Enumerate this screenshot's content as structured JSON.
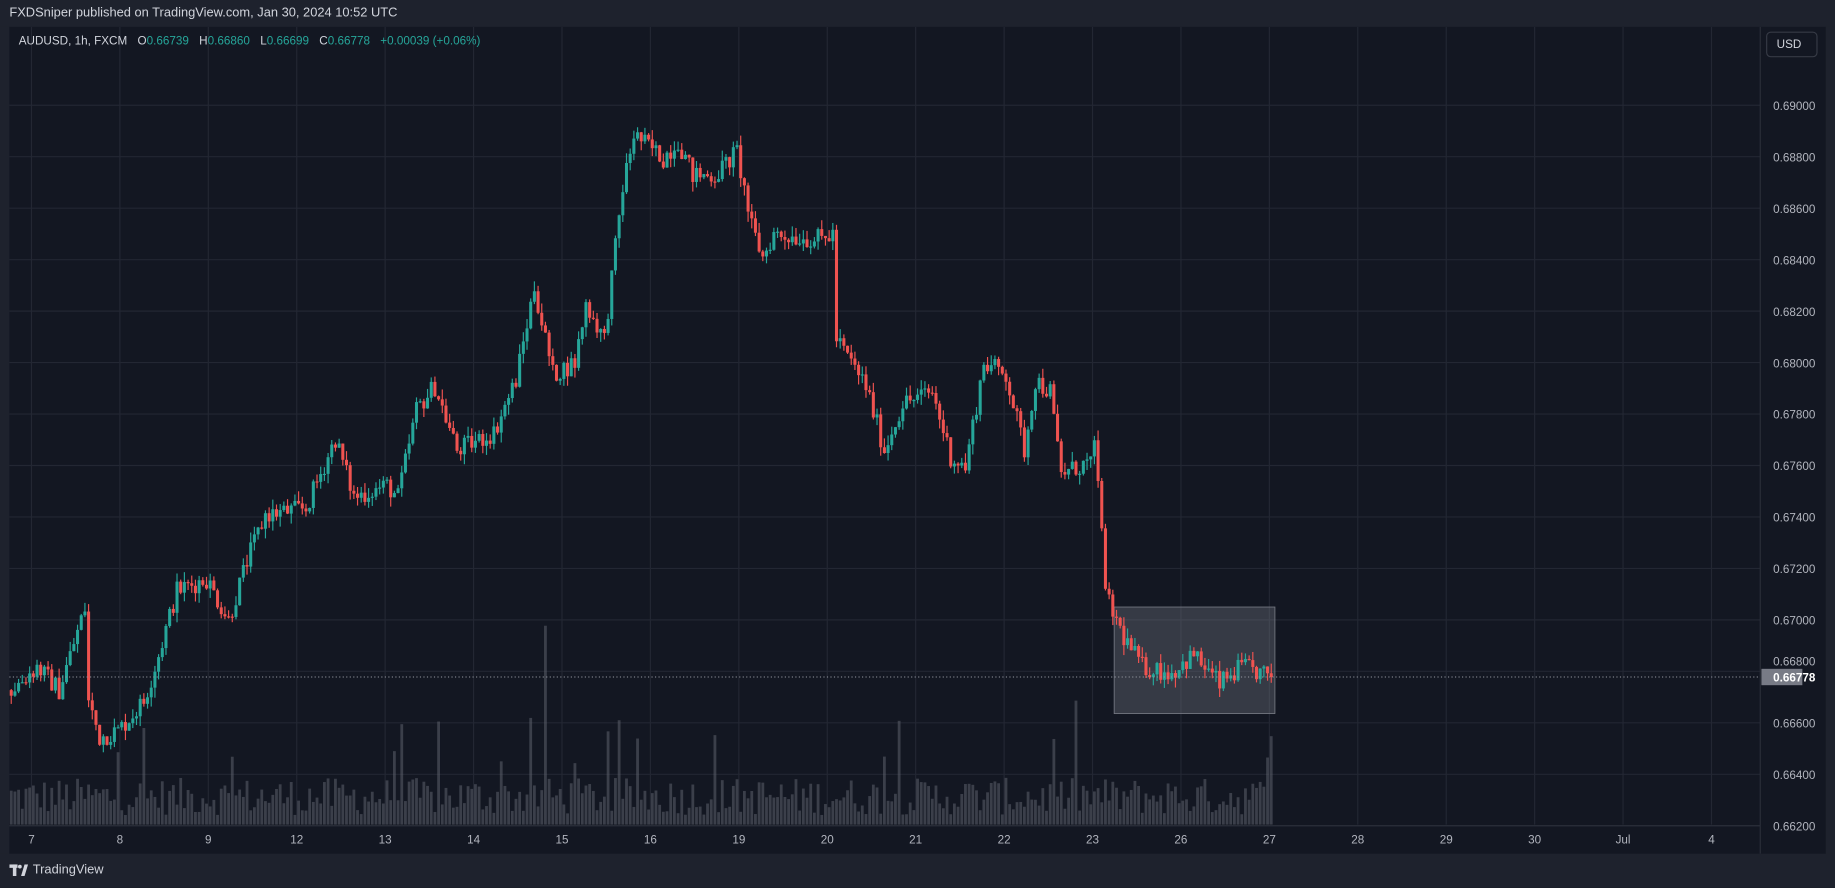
{
  "header": {
    "attribution": "FXDSniper published on TradingView.com, Jan 30, 2024 10:52 UTC"
  },
  "legend": {
    "symbol": "AUDUSD, 1h, FXCM",
    "o_label": "O",
    "o": "0.66739",
    "h_label": "H",
    "h": "0.66860",
    "l_label": "L",
    "l": "0.66699",
    "c_label": "C",
    "c": "0.66778",
    "change": "+0.00039 (+0.06%)"
  },
  "currency_button": "USD",
  "footer": {
    "brand": "TradingView"
  },
  "colors": {
    "up": "#26a69a",
    "down": "#ef5350",
    "background": "#131722",
    "grid": "#232733",
    "volume": "#5d606b",
    "box": "rgba(120,123,134,0.35)"
  },
  "chart_data": {
    "type": "candlestick",
    "symbol": "AUDUSD",
    "interval": "1h",
    "ylim": [
      0.662,
      0.691
    ],
    "y_ticks": [
      "0.69000",
      "0.68800",
      "0.68600",
      "0.68400",
      "0.68200",
      "0.68000",
      "0.67800",
      "0.67600",
      "0.67400",
      "0.67200",
      "0.67000",
      "0.66800",
      "0.66600",
      "0.66400",
      "0.66200"
    ],
    "x_ticks": [
      {
        "label": "7",
        "bar": 6
      },
      {
        "label": "8",
        "bar": 30
      },
      {
        "label": "9",
        "bar": 54
      },
      {
        "label": "12",
        "bar": 78
      },
      {
        "label": "13",
        "bar": 102
      },
      {
        "label": "14",
        "bar": 126
      },
      {
        "label": "15",
        "bar": 150
      },
      {
        "label": "16",
        "bar": 174
      },
      {
        "label": "19",
        "bar": 198
      },
      {
        "label": "20",
        "bar": 222
      },
      {
        "label": "21",
        "bar": 246
      },
      {
        "label": "22",
        "bar": 270
      },
      {
        "label": "23",
        "bar": 294
      },
      {
        "label": "26",
        "bar": 318
      },
      {
        "label": "27",
        "bar": 342
      },
      {
        "label": "28",
        "bar": 366
      },
      {
        "label": "29",
        "bar": 390
      },
      {
        "label": "30",
        "bar": 414
      },
      {
        "label": "Jul",
        "bar": 438
      },
      {
        "label": "4",
        "bar": 462
      }
    ],
    "close_keypoints": [
      [
        0,
        0.66727
      ],
      [
        7,
        0.66818
      ],
      [
        13,
        0.66727
      ],
      [
        20,
        0.67045
      ],
      [
        21,
        0.66682
      ],
      [
        24,
        0.66545
      ],
      [
        29,
        0.66568
      ],
      [
        36,
        0.66682
      ],
      [
        40,
        0.66864
      ],
      [
        45,
        0.67114
      ],
      [
        53,
        0.67159
      ],
      [
        59,
        0.67
      ],
      [
        64,
        0.67227
      ],
      [
        69,
        0.67409
      ],
      [
        80,
        0.67432
      ],
      [
        88,
        0.67705
      ],
      [
        93,
        0.67477
      ],
      [
        102,
        0.67523
      ],
      [
        105,
        0.67477
      ],
      [
        110,
        0.67818
      ],
      [
        115,
        0.67909
      ],
      [
        121,
        0.67659
      ],
      [
        131,
        0.67727
      ],
      [
        137,
        0.67932
      ],
      [
        142,
        0.68295
      ],
      [
        147,
        0.67955
      ],
      [
        153,
        0.68
      ],
      [
        156,
        0.68227
      ],
      [
        161,
        0.68091
      ],
      [
        166,
        0.68682
      ],
      [
        169,
        0.68886
      ],
      [
        177,
        0.68795
      ],
      [
        181,
        0.68864
      ],
      [
        185,
        0.68727
      ],
      [
        191,
        0.68727
      ],
      [
        197,
        0.68818
      ],
      [
        201,
        0.68523
      ],
      [
        204,
        0.68409
      ],
      [
        207,
        0.685
      ],
      [
        220,
        0.68477
      ],
      [
        223,
        0.685
      ],
      [
        224,
        0.68091
      ],
      [
        232,
        0.67909
      ],
      [
        237,
        0.67659
      ],
      [
        242,
        0.67841
      ],
      [
        250,
        0.67886
      ],
      [
        255,
        0.67636
      ],
      [
        259,
        0.67591
      ],
      [
        264,
        0.68
      ],
      [
        270,
        0.67955
      ],
      [
        275,
        0.67659
      ],
      [
        278,
        0.67932
      ],
      [
        282,
        0.67886
      ],
      [
        285,
        0.67568
      ],
      [
        293,
        0.67614
      ],
      [
        294,
        0.67659
      ],
      [
        296,
        0.67386
      ],
      [
        297,
        0.67091
      ],
      [
        302,
        0.66932
      ],
      [
        307,
        0.66818
      ],
      [
        315,
        0.66795
      ],
      [
        321,
        0.66864
      ],
      [
        328,
        0.6675
      ],
      [
        334,
        0.66818
      ],
      [
        342,
        0.66778
      ]
    ],
    "last_price": "0.66778",
    "last_price_value": 0.66778,
    "range_box": {
      "from_bar": 300,
      "to_bar": 343,
      "top": 0.6705,
      "bottom": 0.66636
    }
  }
}
